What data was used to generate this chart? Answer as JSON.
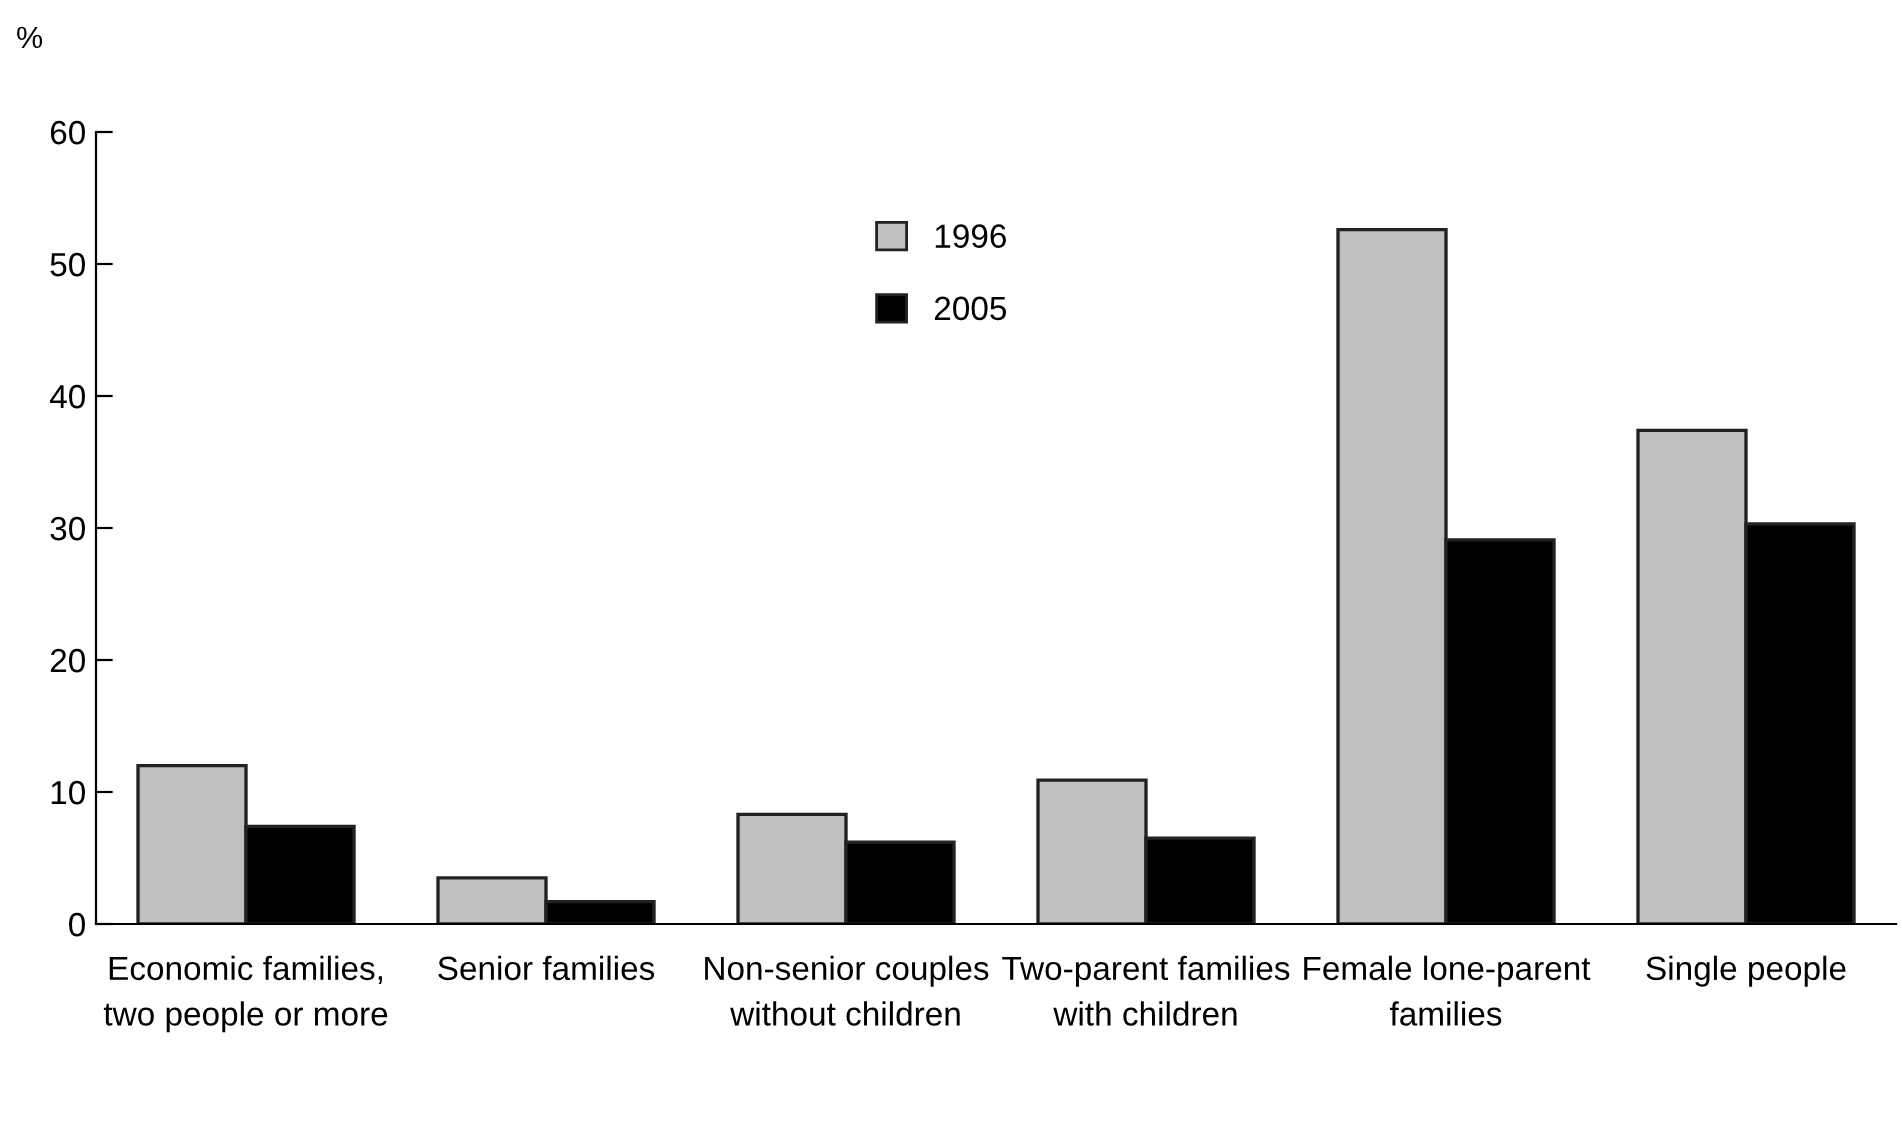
{
  "chart_data": {
    "type": "bar",
    "ylabel": "%",
    "categories": [
      "Economic families, two people or more",
      "Senior families",
      "Non-senior couples without children",
      "Two-parent families with children",
      "Female lone-parent families",
      "Single people"
    ],
    "series": [
      {
        "name": "1996",
        "color": "#c0c0c0",
        "values": [
          12.0,
          3.5,
          8.3,
          10.9,
          52.6,
          37.4
        ]
      },
      {
        "name": "2005",
        "color": "#000000",
        "values": [
          7.4,
          1.7,
          6.2,
          6.5,
          29.1,
          30.3
        ]
      }
    ],
    "ylim": [
      0,
      60
    ],
    "yticks": [
      0,
      10,
      20,
      30,
      40,
      50,
      60
    ],
    "grid": false,
    "legend": "top"
  }
}
